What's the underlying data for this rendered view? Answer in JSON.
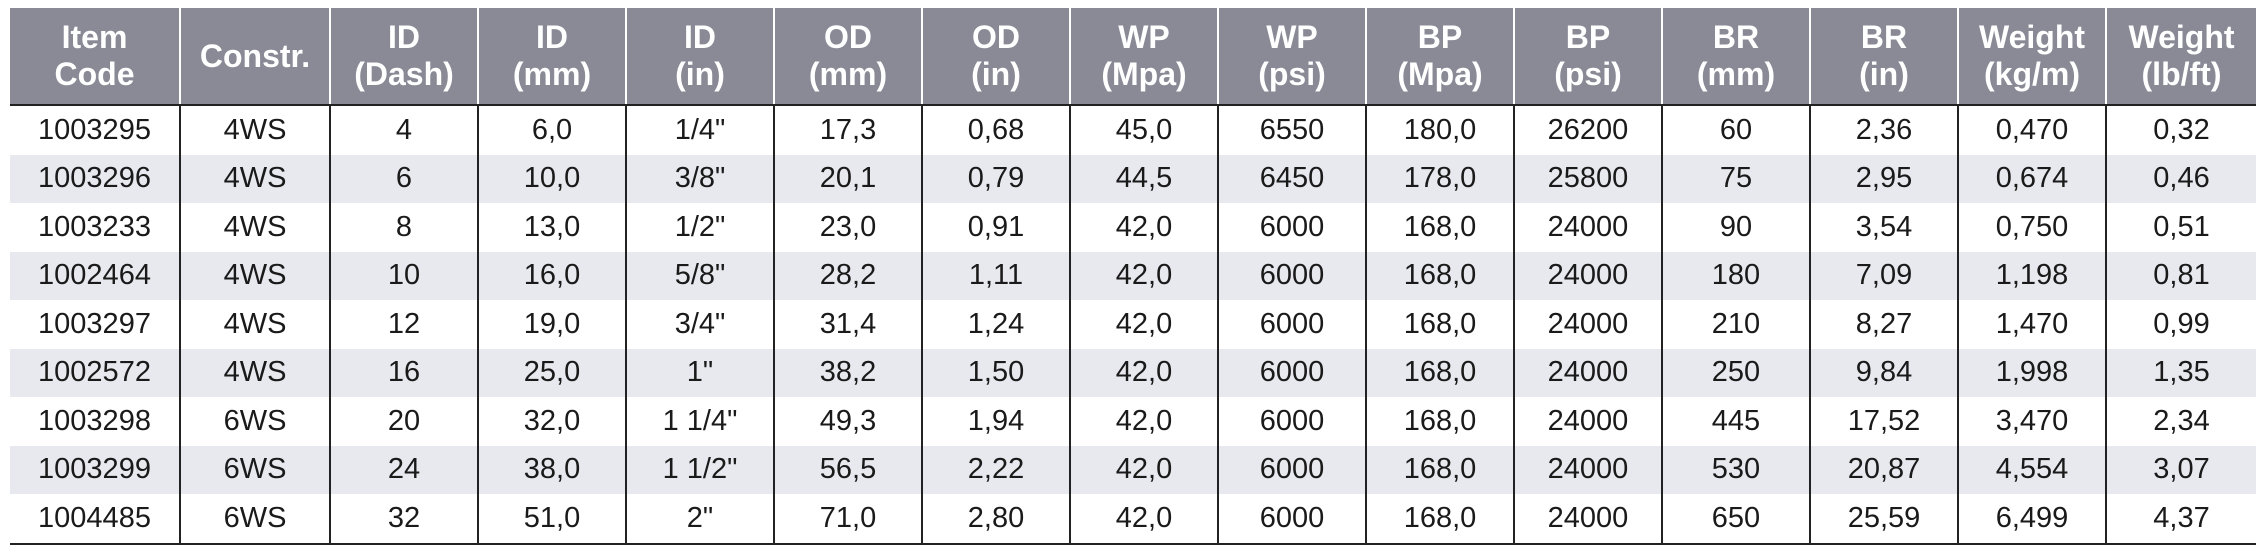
{
  "columns": [
    "Item\nCode",
    "Constr.",
    "ID\n(Dash)",
    "ID\n(mm)",
    "ID\n(in)",
    "OD\n(mm)",
    "OD\n(in)",
    "WP\n(Mpa)",
    "WP\n(psi)",
    "BP\n(Mpa)",
    "BP\n(psi)",
    "BR\n(mm)",
    "BR\n(in)",
    "Weight\n(kg/m)",
    "Weight\n(lb/ft)"
  ],
  "rows": [
    [
      "1003295",
      "4WS",
      "4",
      "6,0",
      "1/4\"",
      "17,3",
      "0,68",
      "45,0",
      "6550",
      "180,0",
      "26200",
      "60",
      "2,36",
      "0,470",
      "0,32"
    ],
    [
      "1003296",
      "4WS",
      "6",
      "10,0",
      "3/8\"",
      "20,1",
      "0,79",
      "44,5",
      "6450",
      "178,0",
      "25800",
      "75",
      "2,95",
      "0,674",
      "0,46"
    ],
    [
      "1003233",
      "4WS",
      "8",
      "13,0",
      "1/2\"",
      "23,0",
      "0,91",
      "42,0",
      "6000",
      "168,0",
      "24000",
      "90",
      "3,54",
      "0,750",
      "0,51"
    ],
    [
      "1002464",
      "4WS",
      "10",
      "16,0",
      "5/8\"",
      "28,2",
      "1,11",
      "42,0",
      "6000",
      "168,0",
      "24000",
      "180",
      "7,09",
      "1,198",
      "0,81"
    ],
    [
      "1003297",
      "4WS",
      "12",
      "19,0",
      "3/4\"",
      "31,4",
      "1,24",
      "42,0",
      "6000",
      "168,0",
      "24000",
      "210",
      "8,27",
      "1,470",
      "0,99"
    ],
    [
      "1002572",
      "4WS",
      "16",
      "25,0",
      "1\"",
      "38,2",
      "1,50",
      "42,0",
      "6000",
      "168,0",
      "24000",
      "250",
      "9,84",
      "1,998",
      "1,35"
    ],
    [
      "1003298",
      "6WS",
      "20",
      "32,0",
      "1 1/4\"",
      "49,3",
      "1,94",
      "42,0",
      "6000",
      "168,0",
      "24000",
      "445",
      "17,52",
      "3,470",
      "2,34"
    ],
    [
      "1003299",
      "6WS",
      "24",
      "38,0",
      "1 1/2\"",
      "56,5",
      "2,22",
      "42,0",
      "6000",
      "168,0",
      "24000",
      "530",
      "20,87",
      "4,554",
      "3,07"
    ],
    [
      "1004485",
      "6WS",
      "32",
      "51,0",
      "2\"",
      "71,0",
      "2,80",
      "42,0",
      "6000",
      "168,0",
      "24000",
      "650",
      "25,59",
      "6,499",
      "4,37"
    ]
  ],
  "colors": {
    "header_bg": "#8a8a96",
    "header_text": "#ffffff",
    "row_shaded": "#e8e8ef",
    "row_plain": "#ffffff",
    "rule": "#222222"
  }
}
